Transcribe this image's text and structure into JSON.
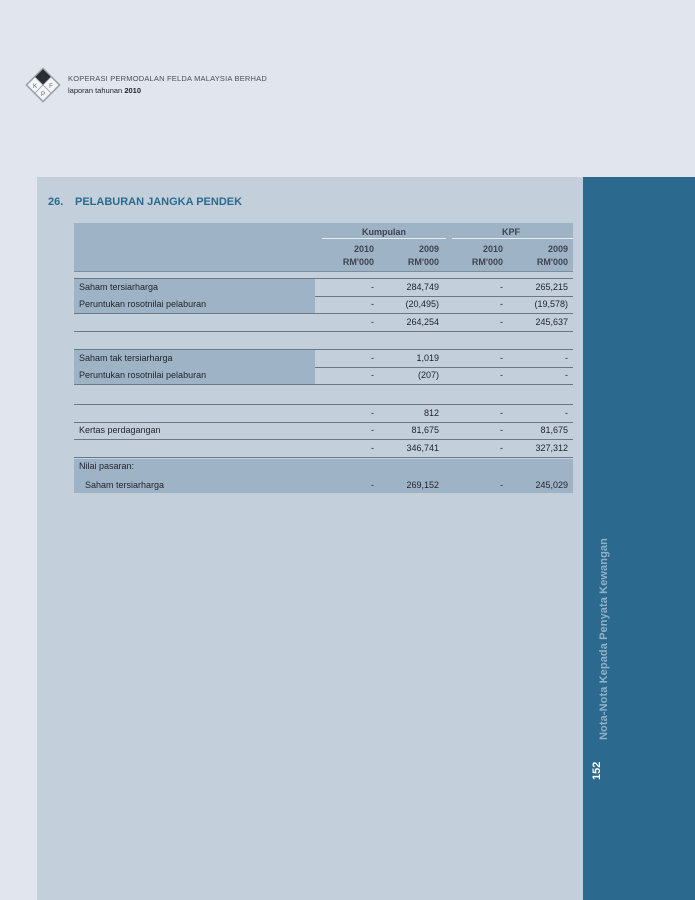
{
  "header": {
    "org_name": "KOPERASI PERMODALAN FELDA MALAYSIA BERHAD",
    "report_prefix": "laporan tahunan ",
    "report_year": "2010"
  },
  "section": {
    "number": "26.",
    "title": "PELABURAN JANGKA PENDEK"
  },
  "table": {
    "groups": [
      "Kumpulan",
      "KPF"
    ],
    "columns": [
      {
        "year": "2010",
        "unit": "RM'000"
      },
      {
        "year": "2009",
        "unit": "RM'000"
      },
      {
        "year": "2010",
        "unit": "RM'000"
      },
      {
        "year": "2009",
        "unit": "RM'000"
      }
    ],
    "rows": [
      {
        "label": "Saham tersiarharga",
        "values": [
          "-",
          "284,749",
          "-",
          "265,215"
        ]
      },
      {
        "label": "Peruntukan rosotnilai pelaburan",
        "values": [
          "-",
          "(20,495)",
          "-",
          "(19,578)"
        ]
      },
      {
        "label": "",
        "values": [
          "-",
          "264,254",
          "-",
          "245,637"
        ]
      },
      {
        "label": "Saham tak tersiarharga",
        "values": [
          "-",
          "1,019",
          "-",
          "-"
        ]
      },
      {
        "label": "Peruntukan rosotnilai pelaburan",
        "values": [
          "-",
          "(207)",
          "-",
          "-"
        ]
      },
      {
        "label": "",
        "values": [
          "-",
          "812",
          "-",
          "-"
        ]
      },
      {
        "label": "Kertas perdagangan",
        "values": [
          "-",
          "81,675",
          "-",
          "81,675"
        ]
      },
      {
        "label": "",
        "values": [
          "-",
          "346,741",
          "-",
          "327,312"
        ]
      }
    ],
    "market_value": {
      "heading": "Nilai pasaran:",
      "label": "Saham tersiarharga",
      "values": [
        "-",
        "269,152",
        "-",
        "245,029"
      ]
    }
  },
  "side": {
    "title": "Nota-Nota Kepada Penyata Kewangan",
    "page_number": "152"
  },
  "colors": {
    "accent": "#2b6a8e",
    "panel": "#c3d0dc",
    "table_header": "#9fb3c6",
    "page_bg": "#e1e6ee"
  }
}
